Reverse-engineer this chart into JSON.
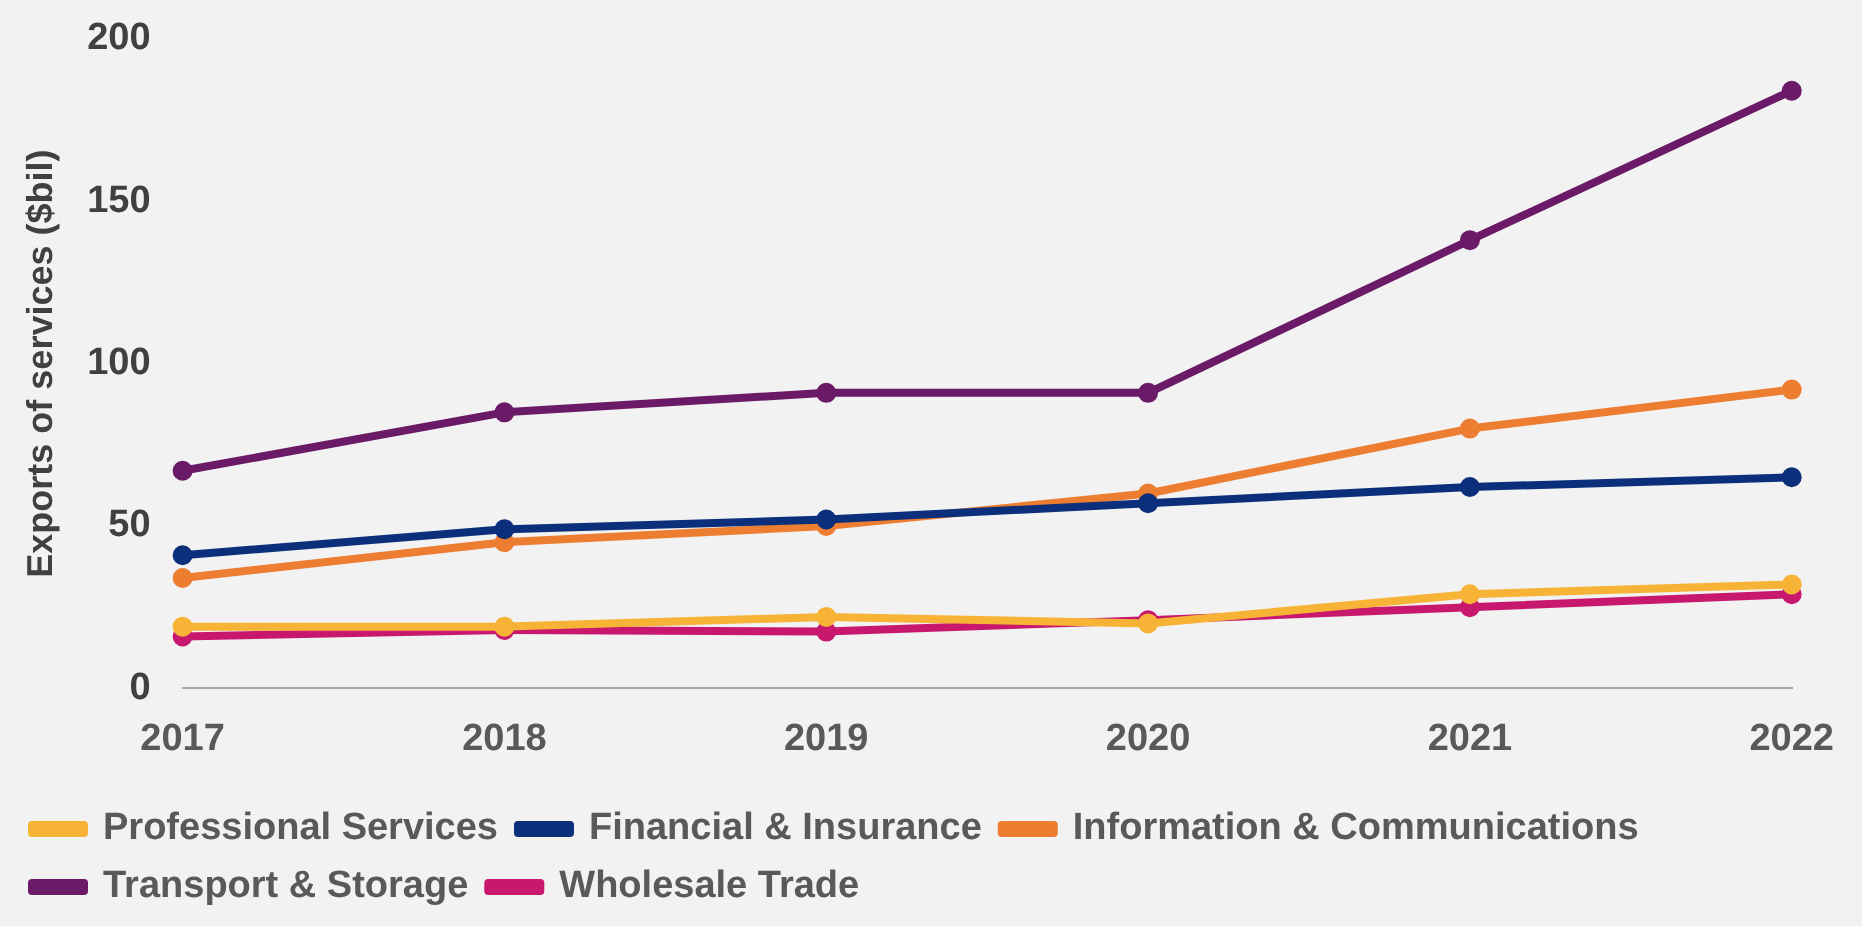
{
  "chart_data": {
    "type": "line",
    "ylabel": "Exports of services ($bil)",
    "categories": [
      "2017",
      "2018",
      "2019",
      "2020",
      "2021",
      "2022"
    ],
    "series": [
      {
        "name": "Wholesale Trade",
        "color": "#c8186e",
        "values": [
          16,
          18,
          17.5,
          21,
          25,
          29
        ]
      },
      {
        "name": "Transport & Storage",
        "color": "#6a1a66",
        "values": [
          67,
          85,
          91,
          91,
          138,
          184
        ]
      },
      {
        "name": "Information & Communications",
        "color": "#ed7d31",
        "values": [
          34,
          45,
          50,
          60,
          80,
          92
        ]
      },
      {
        "name": "Financial & Insurance",
        "color": "#0b2f7a",
        "values": [
          41,
          49,
          52,
          57,
          62,
          65
        ]
      },
      {
        "name": "Professional Services",
        "color": "#f6b335",
        "values": [
          19,
          19,
          22,
          20,
          29,
          32
        ]
      }
    ],
    "ylim": [
      0,
      200
    ],
    "yticks": [
      0,
      50,
      100,
      150,
      200
    ],
    "grid": false,
    "legend": "bottom",
    "marker": "circle",
    "line_style": "solid"
  }
}
